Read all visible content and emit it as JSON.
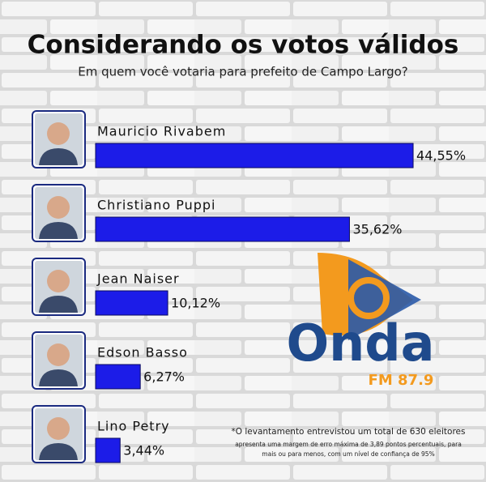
{
  "chart_data": {
    "type": "bar",
    "orientation": "horizontal",
    "title": "Considerando os votos válidos",
    "subtitle": "Em quem você votaria para prefeito de Campo Largo?",
    "categories": [
      "Mauricio Rivabem",
      "Christiano Puppi",
      "Jean Naiser",
      "Edson Basso",
      "Lino Petry"
    ],
    "values": [
      44.55,
      35.62,
      10.12,
      6.27,
      3.44
    ],
    "value_labels": [
      "44,55%",
      "35,62%",
      "10,12%",
      "6,27%",
      "3,44%"
    ],
    "color": "#1c1ce8",
    "logo": {
      "name": "Onda",
      "station": "FM 87.9"
    },
    "footnote": [
      "*O levantamento entrevistou um total de 630 eleitores",
      "apresenta uma margem de erro máxima de 3,89 pontos percentuais, para",
      "mais ou para menos, com um nível de confiança de 95%"
    ]
  }
}
